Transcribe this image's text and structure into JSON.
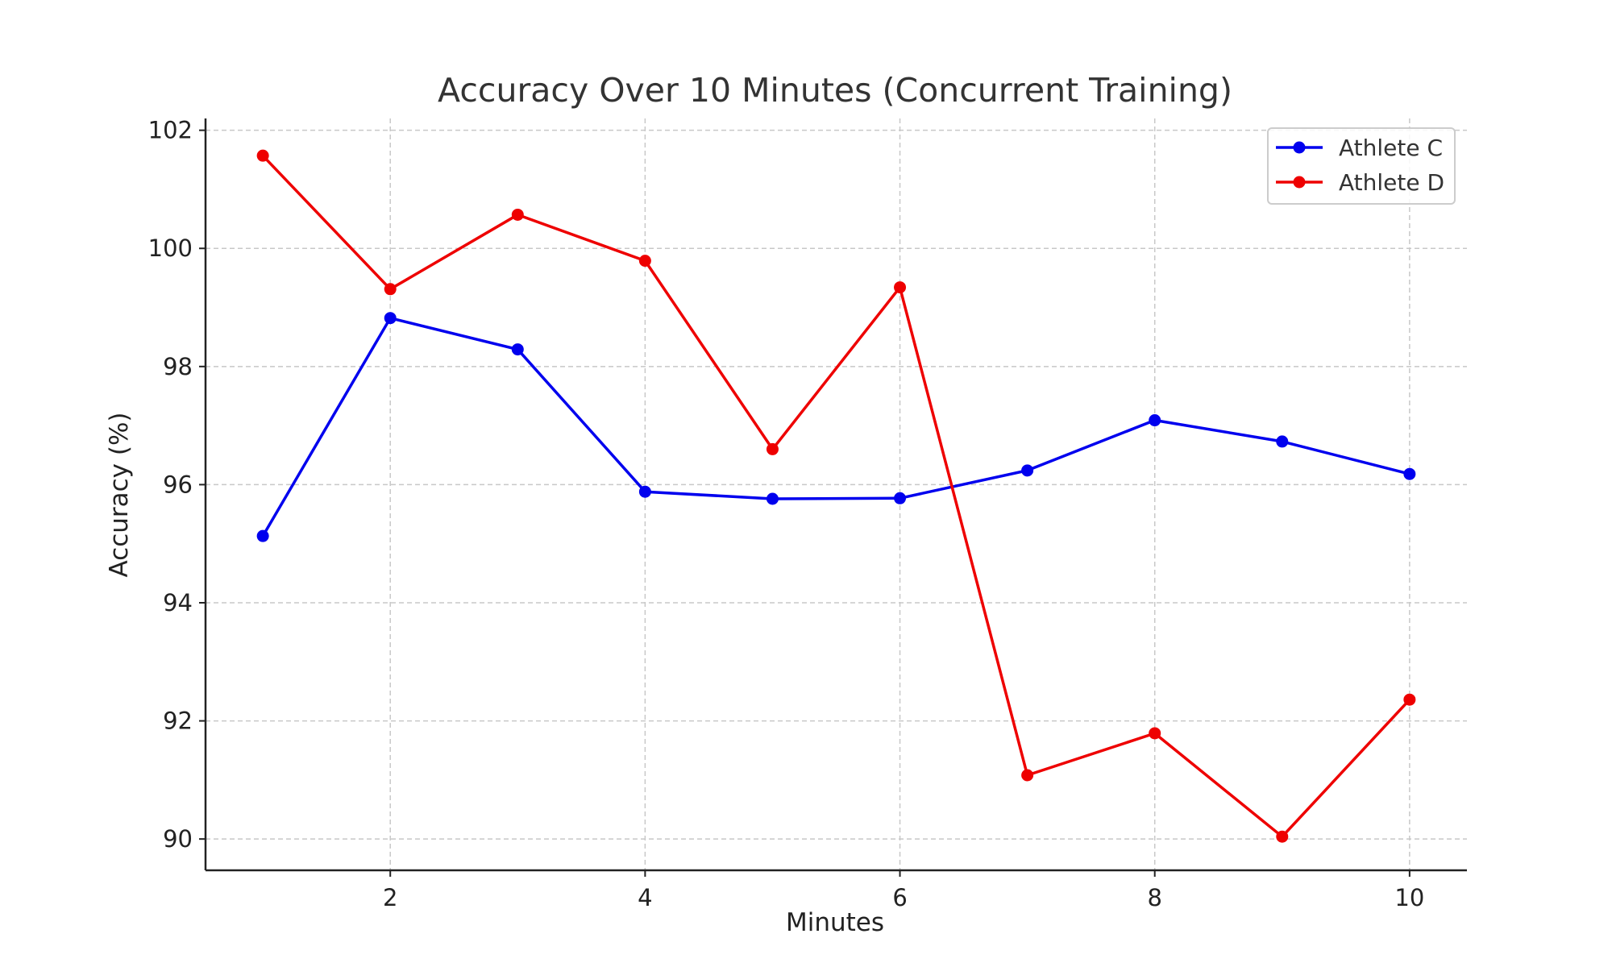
{
  "chart_data": {
    "type": "line",
    "title": "Accuracy Over 10 Minutes (Concurrent Training)",
    "xlabel": "Minutes",
    "ylabel": "Accuracy (%)",
    "x": [
      1,
      2,
      3,
      4,
      5,
      6,
      7,
      8,
      9,
      10
    ],
    "xlim": [
      0.55,
      10.45
    ],
    "ylim": [
      89.47,
      102.2
    ],
    "xticks": [
      2,
      4,
      6,
      8,
      10
    ],
    "yticks": [
      90,
      92,
      94,
      96,
      98,
      100,
      102
    ],
    "grid": true,
    "legend_position": "top-right",
    "series": [
      {
        "name": "Athlete C",
        "color": "#0000ee",
        "values": [
          95.13,
          98.82,
          98.29,
          95.88,
          95.76,
          95.77,
          96.24,
          97.09,
          96.73,
          96.18
        ]
      },
      {
        "name": "Athlete D",
        "color": "#ee0000",
        "values": [
          101.57,
          99.31,
          100.57,
          99.79,
          96.6,
          99.34,
          91.08,
          91.79,
          90.04,
          92.36
        ]
      }
    ]
  }
}
